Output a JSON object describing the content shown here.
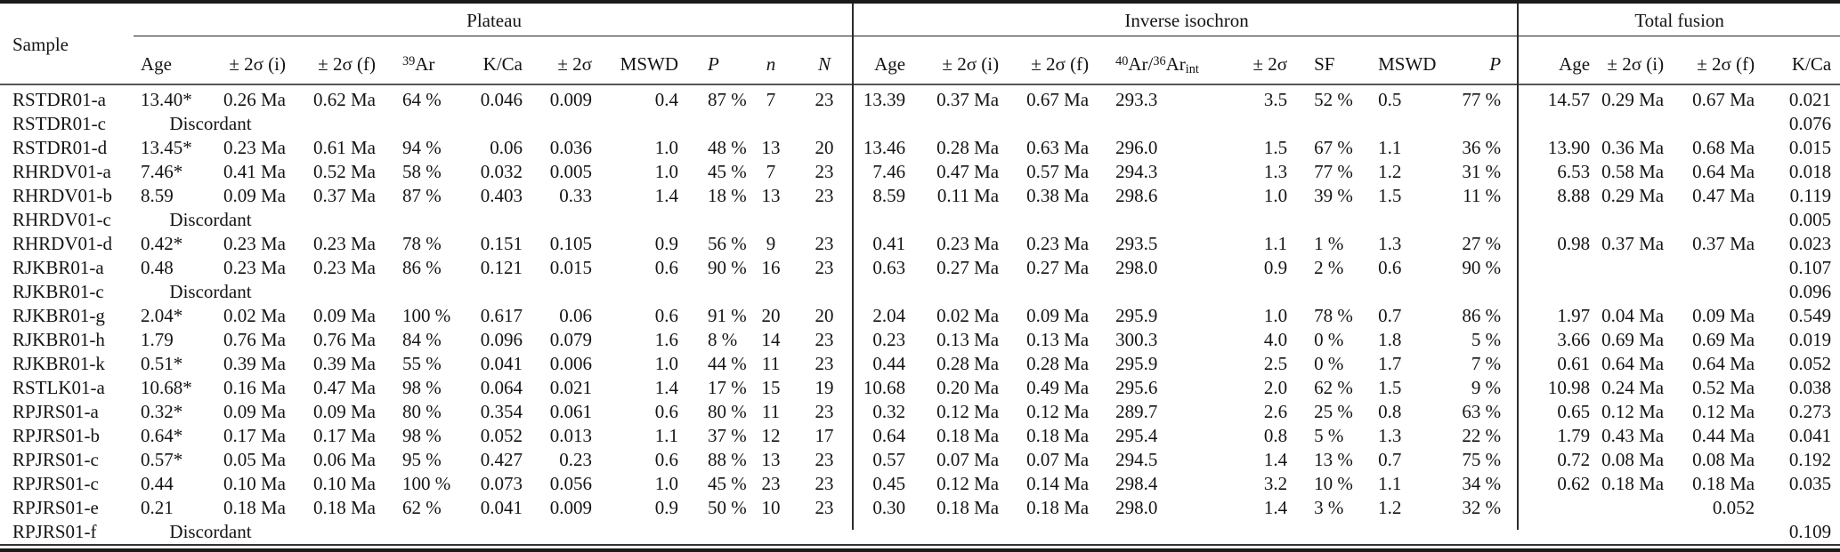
{
  "table": {
    "groups": {
      "sample": "Sample",
      "plateau": "Plateau",
      "inverse": "Inverse isochron",
      "fusion": "Total fusion"
    },
    "discordant_label": "Discordant",
    "plateau_headers": [
      {
        "label": "Age"
      },
      {
        "label": "± 2σ (i)"
      },
      {
        "label": "± 2σ (f)"
      },
      {
        "sup": "39",
        "label": "Ar"
      },
      {
        "label": "K/Ca"
      },
      {
        "label": "± 2σ"
      },
      {
        "label": "MSWD"
      },
      {
        "label": "P",
        "italic": true
      },
      {
        "label": "n",
        "italic": true
      },
      {
        "label": "N",
        "italic": true
      }
    ],
    "inverse_headers": [
      {
        "label": "Age"
      },
      {
        "label": "± 2σ (i)"
      },
      {
        "label": "± 2σ (f)"
      },
      {
        "ratio": {
          "sup1": "40",
          "mid": "Ar/",
          "sup2": "36",
          "base": "Ar",
          "sub": "int"
        }
      },
      {
        "label": "± 2σ"
      },
      {
        "label": "SF"
      },
      {
        "label": "MSWD"
      },
      {
        "label": "P",
        "italic": true
      }
    ],
    "fusion_headers": [
      {
        "label": "Age"
      },
      {
        "label": "± 2σ (i)"
      },
      {
        "label": "± 2σ (f)"
      },
      {
        "label": "K/Ca"
      }
    ],
    "rows": [
      {
        "sample": "RSTDR01-a",
        "plateau": [
          "13.40*",
          "0.26 Ma",
          "0.62 Ma",
          "64 %",
          "0.046",
          "0.009",
          "0.4",
          "87 %",
          "7",
          "23"
        ],
        "inverse": [
          "13.39",
          "0.37 Ma",
          "0.67 Ma",
          "293.3",
          "3.5",
          "52 %",
          "0.5",
          "77 %"
        ],
        "fusion": [
          "14.57",
          "0.29 Ma",
          "0.67 Ma",
          "0.021"
        ]
      },
      {
        "sample": "RSTDR01-c",
        "discordant": true,
        "fusion": [
          "",
          "",
          "",
          "0.076"
        ]
      },
      {
        "sample": "RSTDR01-d",
        "plateau": [
          "13.45*",
          "0.23 Ma",
          "0.61 Ma",
          "94 %",
          "0.06",
          "0.036",
          "1.0",
          "48 %",
          "13",
          "20"
        ],
        "inverse": [
          "13.46",
          "0.28 Ma",
          "0.63 Ma",
          "296.0",
          "1.5",
          "67 %",
          "1.1",
          "36 %"
        ],
        "fusion": [
          "13.90",
          "0.36 Ma",
          "0.68 Ma",
          "0.015"
        ]
      },
      {
        "sample": "RHRDV01-a",
        "plateau": [
          "7.46*",
          "0.41 Ma",
          "0.52 Ma",
          "58 %",
          "0.032",
          "0.005",
          "1.0",
          "45 %",
          "7",
          "23"
        ],
        "inverse": [
          "7.46",
          "0.47 Ma",
          "0.57 Ma",
          "294.3",
          "1.3",
          "77 %",
          "1.2",
          "31 %"
        ],
        "fusion": [
          "6.53",
          "0.58 Ma",
          "0.64 Ma",
          "0.018"
        ]
      },
      {
        "sample": "RHRDV01-b",
        "plateau": [
          "8.59",
          "0.09 Ma",
          "0.37 Ma",
          "87 %",
          "0.403",
          "0.33",
          "1.4",
          "18 %",
          "13",
          "23"
        ],
        "inverse": [
          "8.59",
          "0.11 Ma",
          "0.38 Ma",
          "298.6",
          "1.0",
          "39 %",
          "1.5",
          "11 %"
        ],
        "fusion": [
          "8.88",
          "0.29 Ma",
          "0.47 Ma",
          "0.119"
        ]
      },
      {
        "sample": "RHRDV01-c",
        "discordant": true,
        "fusion": [
          "",
          "",
          "",
          "0.005"
        ]
      },
      {
        "sample": "RHRDV01-d",
        "plateau": [
          "0.42*",
          "0.23 Ma",
          "0.23 Ma",
          "78 %",
          "0.151",
          "0.105",
          "0.9",
          "56 %",
          "9",
          "23"
        ],
        "inverse": [
          "0.41",
          "0.23 Ma",
          "0.23 Ma",
          "293.5",
          "1.1",
          "1 %",
          "1.3",
          "27 %"
        ],
        "fusion": [
          "0.98",
          "0.37 Ma",
          "0.37 Ma",
          "0.023"
        ]
      },
      {
        "sample": "RJKBR01-a",
        "plateau": [
          "0.48",
          "0.23 Ma",
          "0.23 Ma",
          "86 %",
          "0.121",
          "0.015",
          "0.6",
          "90 %",
          "16",
          "23"
        ],
        "inverse": [
          "0.63",
          "0.27 Ma",
          "0.27 Ma",
          "298.0",
          "0.9",
          "2 %",
          "0.6",
          "90 %"
        ],
        "fusion": [
          "",
          "",
          "",
          "0.107"
        ]
      },
      {
        "sample": "RJKBR01-c",
        "discordant": true,
        "fusion": [
          "",
          "",
          "",
          "0.096"
        ]
      },
      {
        "sample": "RJKBR01-g",
        "plateau": [
          "2.04*",
          "0.02 Ma",
          "0.09 Ma",
          "100 %",
          "0.617",
          "0.06",
          "0.6",
          "91 %",
          "20",
          "20"
        ],
        "inverse": [
          "2.04",
          "0.02 Ma",
          "0.09 Ma",
          "295.9",
          "1.0",
          "78 %",
          "0.7",
          "86 %"
        ],
        "fusion": [
          "1.97",
          "0.04 Ma",
          "0.09 Ma",
          "0.549"
        ]
      },
      {
        "sample": "RJKBR01-h",
        "plateau": [
          "1.79",
          "0.76 Ma",
          "0.76 Ma",
          "84 %",
          "0.096",
          "0.079",
          "1.6",
          "8 %",
          "14",
          "23"
        ],
        "inverse": [
          "0.23",
          "0.13 Ma",
          "0.13 Ma",
          "300.3",
          "4.0",
          "0 %",
          "1.8",
          "5 %"
        ],
        "fusion": [
          "3.66",
          "0.69 Ma",
          "0.69 Ma",
          "0.019"
        ]
      },
      {
        "sample": "RJKBR01-k",
        "plateau": [
          "0.51*",
          "0.39 Ma",
          "0.39 Ma",
          "55 %",
          "0.041",
          "0.006",
          "1.0",
          "44 %",
          "11",
          "23"
        ],
        "inverse": [
          "0.44",
          "0.28 Ma",
          "0.28 Ma",
          "295.9",
          "2.5",
          "0 %",
          "1.7",
          "7 %"
        ],
        "fusion": [
          "0.61",
          "0.64 Ma",
          "0.64 Ma",
          "0.052"
        ]
      },
      {
        "sample": "RSTLK01-a",
        "plateau": [
          "10.68*",
          "0.16 Ma",
          "0.47 Ma",
          "98 %",
          "0.064",
          "0.021",
          "1.4",
          "17 %",
          "15",
          "19"
        ],
        "inverse": [
          "10.68",
          "0.20 Ma",
          "0.49 Ma",
          "295.6",
          "2.0",
          "62 %",
          "1.5",
          "9 %"
        ],
        "fusion": [
          "10.98",
          "0.24 Ma",
          "0.52 Ma",
          "0.038"
        ]
      },
      {
        "sample": "RPJRS01-a",
        "plateau": [
          "0.32*",
          "0.09 Ma",
          "0.09 Ma",
          "80 %",
          "0.354",
          "0.061",
          "0.6",
          "80 %",
          "11",
          "23"
        ],
        "inverse": [
          "0.32",
          "0.12 Ma",
          "0.12 Ma",
          "289.7",
          "2.6",
          "25 %",
          "0.8",
          "63 %"
        ],
        "fusion": [
          "0.65",
          "0.12 Ma",
          "0.12 Ma",
          "0.273"
        ]
      },
      {
        "sample": "RPJRS01-b",
        "plateau": [
          "0.64*",
          "0.17 Ma",
          "0.17 Ma",
          "98 %",
          "0.052",
          "0.013",
          "1.1",
          "37 %",
          "12",
          "17"
        ],
        "inverse": [
          "0.64",
          "0.18 Ma",
          "0.18 Ma",
          "295.4",
          "0.8",
          "5 %",
          "1.3",
          "22 %"
        ],
        "fusion": [
          "1.79",
          "0.43 Ma",
          "0.44 Ma",
          "0.041"
        ]
      },
      {
        "sample": "RPJRS01-c",
        "plateau": [
          "0.57*",
          "0.05 Ma",
          "0.06 Ma",
          "95 %",
          "0.427",
          "0.23",
          "0.6",
          "88 %",
          "13",
          "23"
        ],
        "inverse": [
          "0.57",
          "0.07 Ma",
          "0.07 Ma",
          "294.5",
          "1.4",
          "13 %",
          "0.7",
          "75 %"
        ],
        "fusion": [
          "0.72",
          "0.08 Ma",
          "0.08 Ma",
          "0.192"
        ]
      },
      {
        "sample": "RPJRS01-c",
        "plateau": [
          "0.44",
          "0.10 Ma",
          "0.10 Ma",
          "100 %",
          "0.073",
          "0.056",
          "1.0",
          "45 %",
          "23",
          "23"
        ],
        "inverse": [
          "0.45",
          "0.12 Ma",
          "0.14 Ma",
          "298.4",
          "3.2",
          "10 %",
          "1.1",
          "34 %"
        ],
        "fusion": [
          "0.62",
          "0.18 Ma",
          "0.18 Ma",
          "0.035"
        ]
      },
      {
        "sample": "RPJRS01-e",
        "plateau": [
          "0.21",
          "0.18 Ma",
          "0.18 Ma",
          "62 %",
          "0.041",
          "0.009",
          "0.9",
          "50 %",
          "10",
          "23"
        ],
        "inverse": [
          "0.30",
          "0.18 Ma",
          "0.18 Ma",
          "298.0",
          "1.4",
          "3 %",
          "1.2",
          "32 %"
        ],
        "fusion": [
          "",
          "",
          "0.052",
          ""
        ]
      },
      {
        "sample": "RPJRS01-f",
        "discordant": true,
        "fusion": [
          "",
          "",
          "",
          "0.109"
        ]
      }
    ]
  }
}
